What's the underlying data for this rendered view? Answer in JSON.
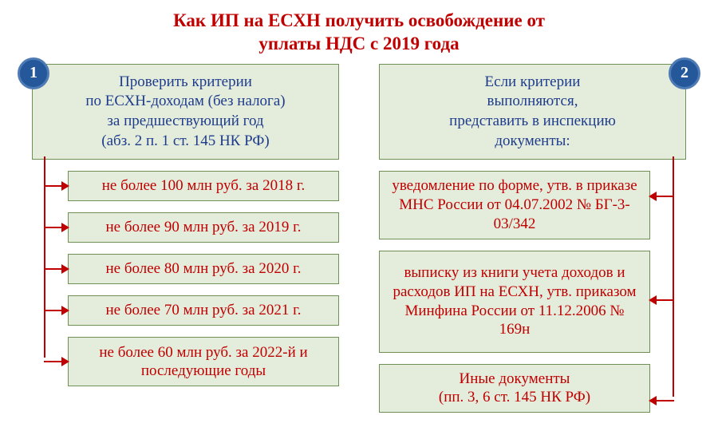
{
  "title_line1": "Как ИП на ЕСХН получить освобождение от",
  "title_line2": "уплаты НДС с 2019 года",
  "colors": {
    "title": "#c00000",
    "header_text": "#1e3c8c",
    "item_text": "#c00000",
    "box_bg": "#e4ecdc",
    "box_border": "#6f8f55",
    "badge_bg": "#24589a",
    "badge_border": "#4f7bb5",
    "arrow": "#c00000",
    "background": "#ffffff"
  },
  "fontsize": {
    "title": 23,
    "body": 19,
    "badge": 20
  },
  "left": {
    "badge": "1",
    "header": "Проверить критерии\nпо ЕСХН-доходам (без налога)\nза предшествующий год\n(абз. 2 п. 1 ст. 145 НК РФ)",
    "items": [
      "не более 100 млн руб. за 2018 г.",
      "не более 90 млн руб. за 2019 г.",
      "не более 80 млн руб. за 2020 г.",
      "не более 70 млн руб. за 2021 г.",
      "не более 60 млн руб. за 2022-й и последующие годы"
    ]
  },
  "right": {
    "badge": "2",
    "header": "Если критерии\nвыполняются,\nпредставить в инспекцию\nдокументы:",
    "items": [
      "уведомление по форме, утв. в приказе МНС России от 04.07.2002 № БГ-3-03/342",
      "выписку из книги учета доходов и расходов ИП на ЕСХН, утв. приказом Минфина России от 11.12.2006 № 169н",
      "Иные документы\n(пп. 3, 6 ст. 145 НК РФ)"
    ]
  },
  "layout": {
    "left_arrow_tops": [
      147,
      199,
      251,
      303,
      367
    ],
    "left_vline_height": 252,
    "right_arrow_tops": [
      160,
      290,
      416
    ],
    "right_vline_height": 301,
    "left_item_heights": [
      38,
      38,
      38,
      38,
      62
    ],
    "right_item_heights": [
      80,
      128,
      56
    ]
  }
}
